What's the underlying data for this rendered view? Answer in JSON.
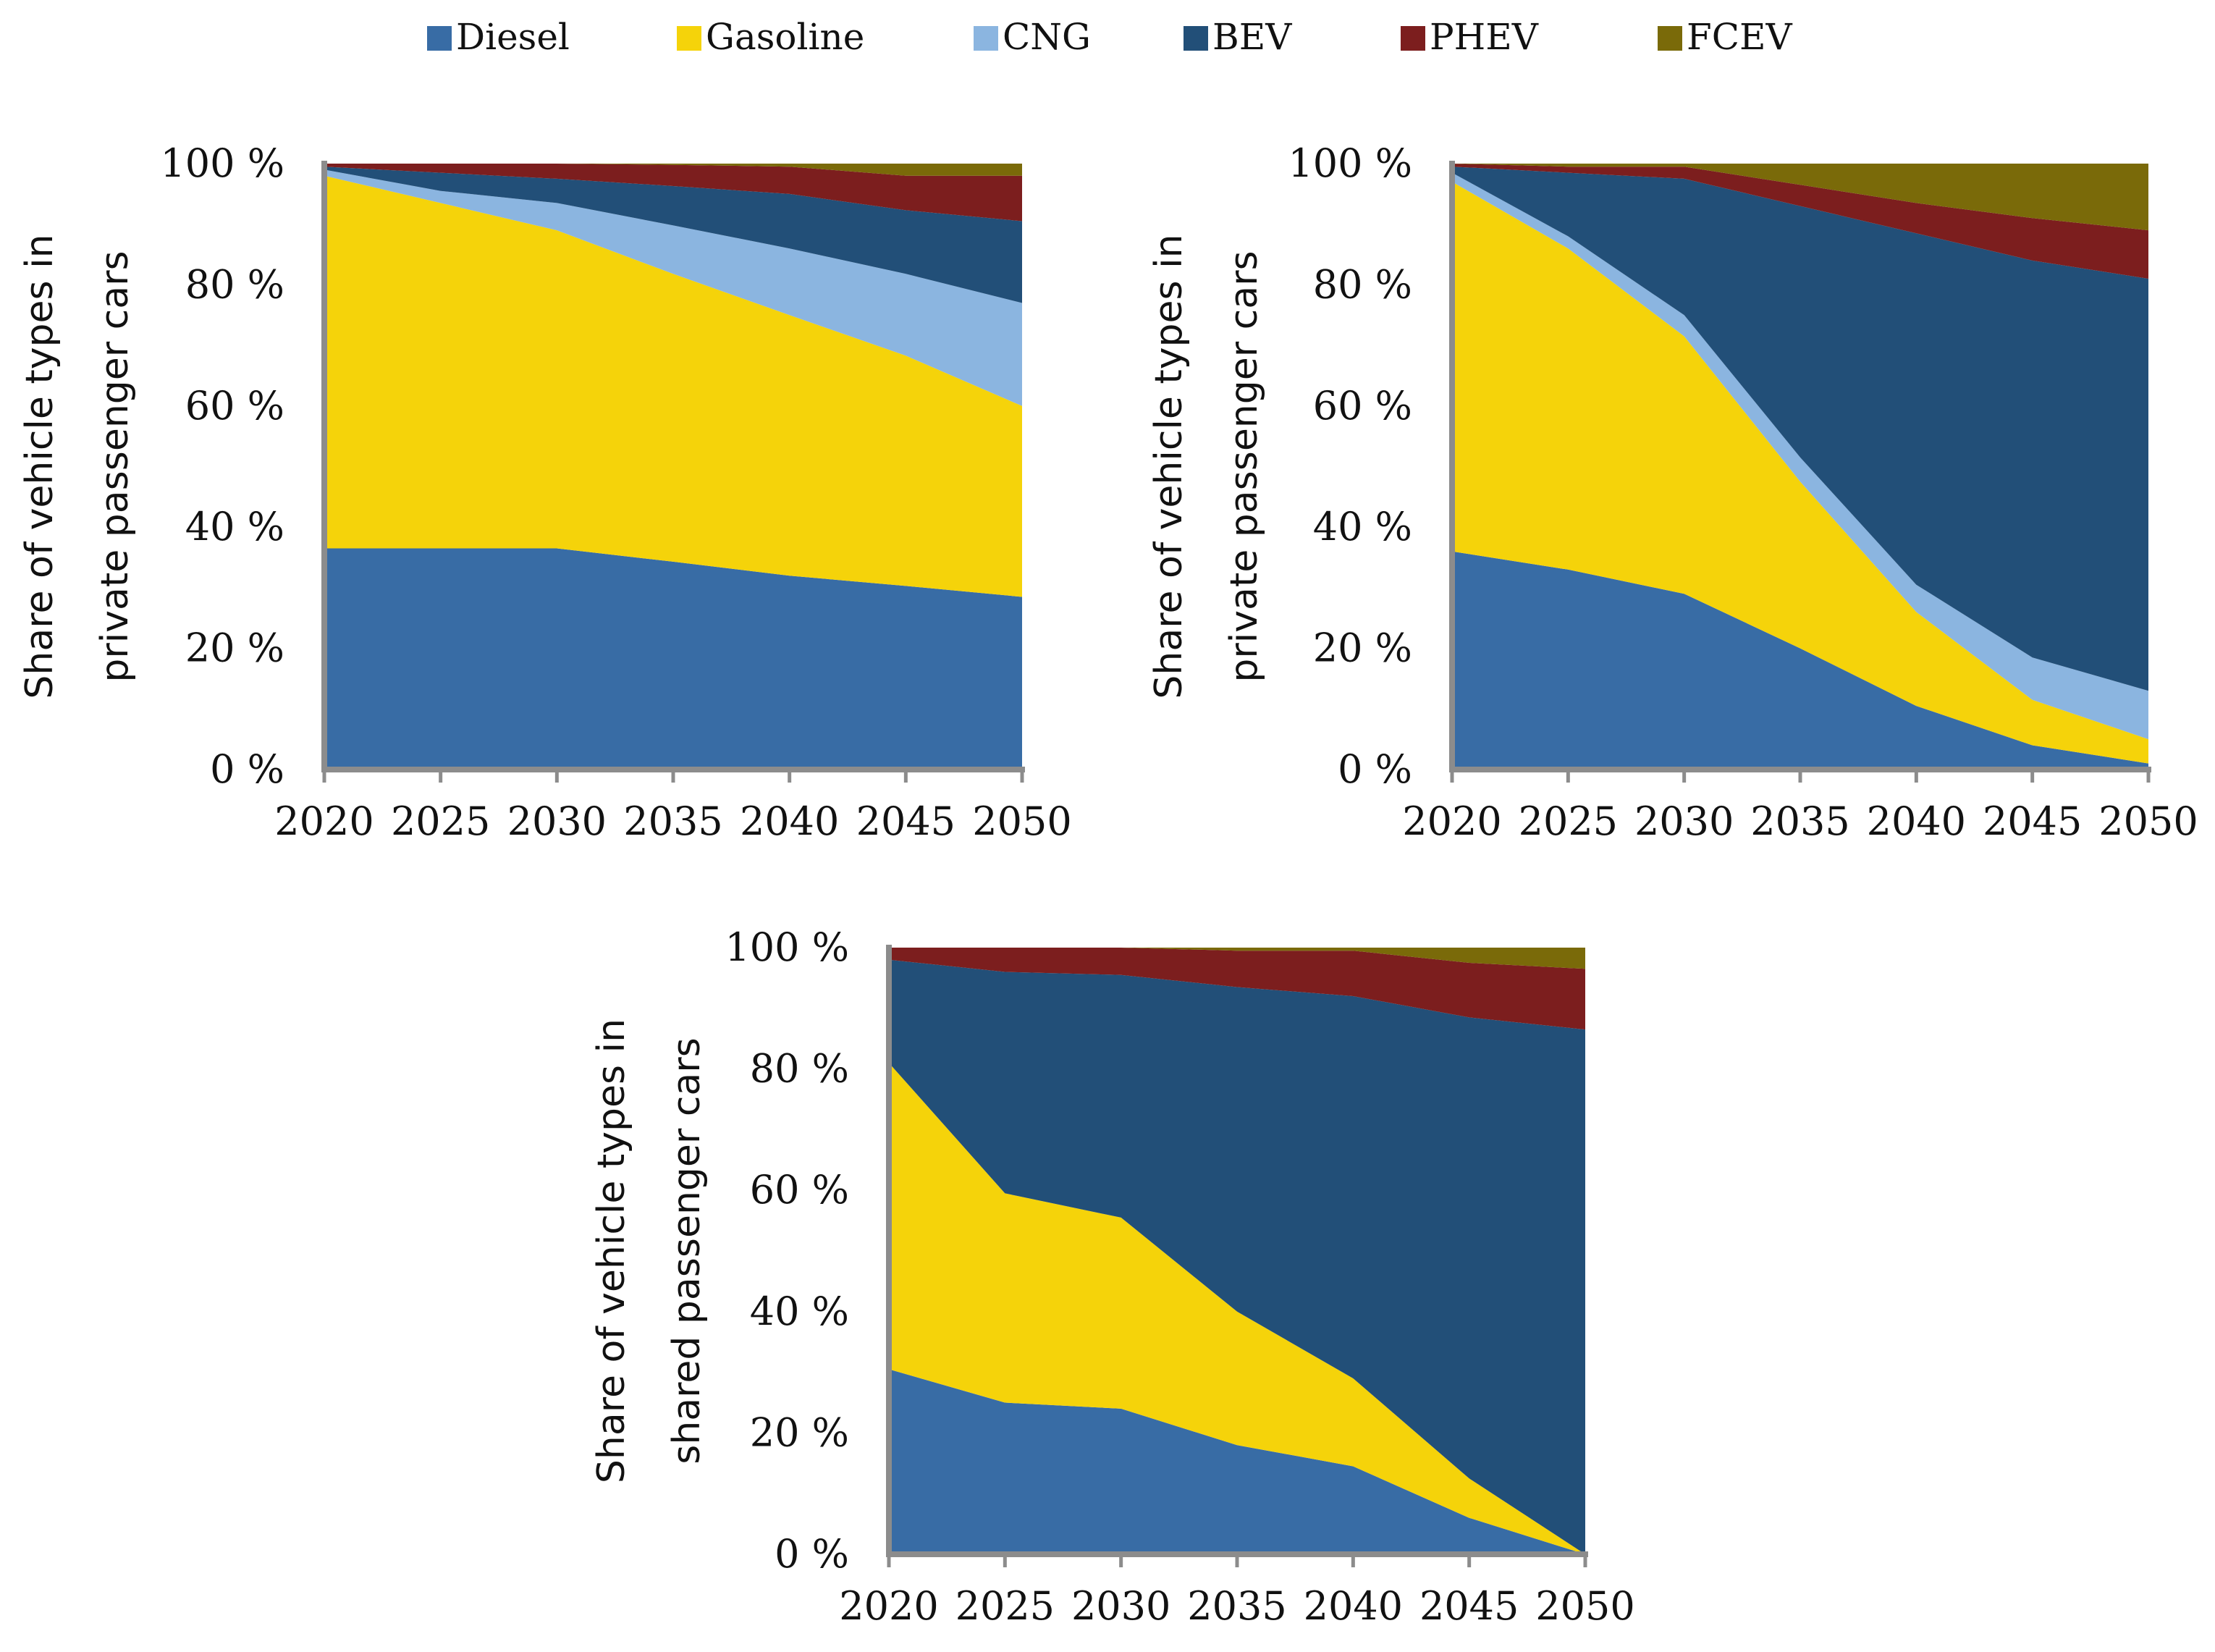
{
  "legend": [
    {
      "name": "Diesel",
      "color": "#386ca5"
    },
    {
      "name": "Gasoline",
      "color": "#f5d30a"
    },
    {
      "name": "CNG",
      "color": "#8bb5e0"
    },
    {
      "name": "BEV",
      "color": "#224f78"
    },
    {
      "name": "PHEV",
      "color": "#7c1e1e"
    },
    {
      "name": "FCEV",
      "color": "#7a6a09"
    }
  ],
  "chart_data": [
    {
      "type": "area",
      "stacked": true,
      "title": "",
      "xlabel": "",
      "ylabel_lines": [
        "Share of vehicle types in",
        "private passenger cars"
      ],
      "x": [
        2020,
        2025,
        2030,
        2035,
        2040,
        2045,
        2050
      ],
      "x_tick_labels": [
        "2020",
        "2025",
        "2030",
        "2035",
        "2040",
        "2045",
        "2050"
      ],
      "y_tick_labels": [
        "0 %",
        "20 %",
        "40 %",
        "60 %",
        "80 %",
        "100 %"
      ],
      "ylim": [
        0,
        100
      ],
      "series": [
        {
          "name": "Diesel",
          "values": [
            36.5,
            36.5,
            36.5,
            34.3,
            32.0,
            30.3,
            28.5
          ]
        },
        {
          "name": "Gasoline",
          "values": [
            61.5,
            57.0,
            52.5,
            47.5,
            43.0,
            38.0,
            31.5
          ]
        },
        {
          "name": "CNG",
          "values": [
            1.0,
            2.0,
            4.5,
            8.0,
            11.0,
            13.5,
            17.0
          ]
        },
        {
          "name": "BEV",
          "values": [
            0.5,
            3.0,
            4.0,
            6.5,
            9.0,
            10.5,
            13.5
          ]
        },
        {
          "name": "PHEV",
          "values": [
            0.5,
            1.5,
            2.5,
            3.5,
            4.5,
            5.7,
            7.5
          ]
        },
        {
          "name": "FCEV",
          "values": [
            0.0,
            0.0,
            0.0,
            0.2,
            0.5,
            2.0,
            2.0
          ]
        }
      ]
    },
    {
      "type": "area",
      "stacked": true,
      "title": "",
      "xlabel": "",
      "ylabel_lines": [
        "Share of vehicle types in",
        "private passenger cars"
      ],
      "x": [
        2020,
        2025,
        2030,
        2035,
        2040,
        2045,
        2050
      ],
      "x_tick_labels": [
        "2020",
        "2025",
        "2030",
        "2035",
        "2040",
        "2045",
        "2050"
      ],
      "y_tick_labels": [
        "0 %",
        "20 %",
        "40 %",
        "60 %",
        "80 %",
        "100 %"
      ],
      "ylim": [
        0,
        100
      ],
      "series": [
        {
          "name": "Diesel",
          "values": [
            36.0,
            33.0,
            29.0,
            20.0,
            10.5,
            4.0,
            1.0
          ]
        },
        {
          "name": "Gasoline",
          "values": [
            61.0,
            53.0,
            42.5,
            27.5,
            15.5,
            7.5,
            4.0
          ]
        },
        {
          "name": "CNG",
          "values": [
            1.5,
            2.0,
            3.5,
            4.0,
            4.5,
            7.0,
            8.0
          ]
        },
        {
          "name": "BEV",
          "values": [
            1.0,
            10.5,
            22.5,
            41.5,
            58.0,
            65.5,
            68.0
          ]
        },
        {
          "name": "PHEV",
          "values": [
            0.5,
            1.0,
            2.0,
            3.5,
            5.0,
            7.0,
            8.0
          ]
        },
        {
          "name": "FCEV",
          "values": [
            0.0,
            0.5,
            0.5,
            3.5,
            6.5,
            9.0,
            11.0
          ]
        }
      ]
    },
    {
      "type": "area",
      "stacked": true,
      "title": "",
      "xlabel": "",
      "ylabel_lines": [
        "Share of vehicle types in",
        "shared passenger cars"
      ],
      "x": [
        2020,
        2025,
        2030,
        2035,
        2040,
        2045,
        2050
      ],
      "x_tick_labels": [
        "2020",
        "2025",
        "2030",
        "2035",
        "2040",
        "2045",
        "2050"
      ],
      "y_tick_labels": [
        "0 %",
        "20 %",
        "40 %",
        "60 %",
        "80 %",
        "100 %"
      ],
      "ylim": [
        0,
        100
      ],
      "series": [
        {
          "name": "Diesel",
          "values": [
            30.5,
            25.0,
            24.0,
            18.0,
            14.5,
            6.0,
            0.0
          ]
        },
        {
          "name": "Gasoline",
          "values": [
            50.5,
            34.5,
            31.5,
            22.0,
            14.5,
            6.5,
            0.0
          ]
        },
        {
          "name": "CNG",
          "values": [
            0.0,
            0.0,
            0.0,
            0.0,
            0.0,
            0.0,
            0.0
          ]
        },
        {
          "name": "BEV",
          "values": [
            17.0,
            36.5,
            40.0,
            53.5,
            63.0,
            76.0,
            86.5
          ]
        },
        {
          "name": "PHEV",
          "values": [
            2.0,
            4.0,
            4.5,
            6.0,
            7.5,
            9.0,
            10.0
          ]
        },
        {
          "name": "FCEV",
          "values": [
            0.0,
            0.0,
            0.0,
            0.5,
            0.5,
            2.5,
            3.5
          ]
        }
      ]
    }
  ]
}
